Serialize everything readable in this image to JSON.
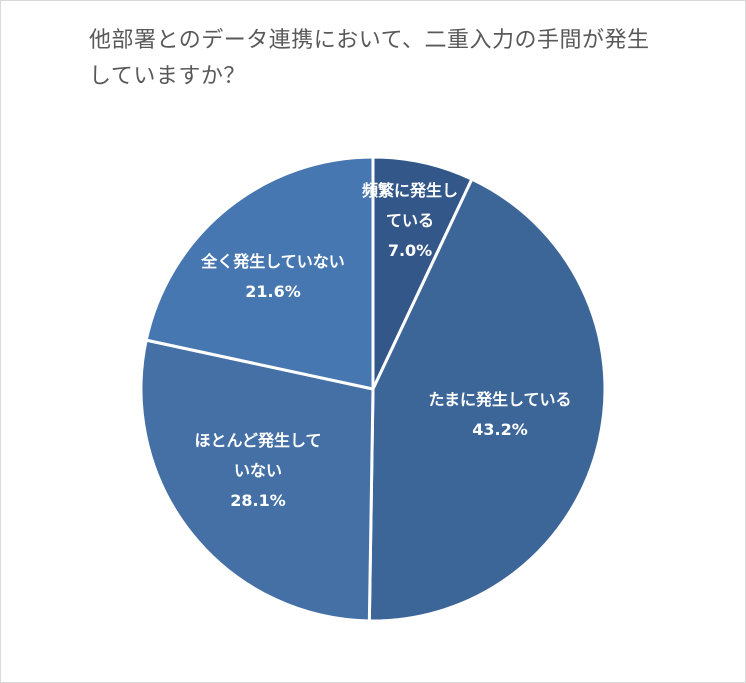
{
  "chart_data": {
    "type": "pie",
    "title_lines": [
      "他部署とのデータ連携において、二重入力の手間が発生",
      "していますか？"
    ],
    "slices": [
      {
        "label_lines": [
          "頻繁に発生し",
          "ている"
        ],
        "value": 7.0,
        "value_label": "7.0%",
        "color": "#335789"
      },
      {
        "label_lines": [
          "たまに発生している"
        ],
        "value": 43.2,
        "value_label": "43.2%",
        "color": "#3d6698"
      },
      {
        "label_lines": [
          "ほとんど発生して",
          "いない"
        ],
        "value": 28.1,
        "value_label": "28.1%",
        "color": "#4470a6"
      },
      {
        "label_lines": [
          "全く発生していない"
        ],
        "value": 21.6,
        "value_label": "21.6%",
        "color": "#4677b1"
      }
    ],
    "start_angle_deg": 0,
    "direction": "clockwise",
    "edge_color": "#ffffff"
  }
}
